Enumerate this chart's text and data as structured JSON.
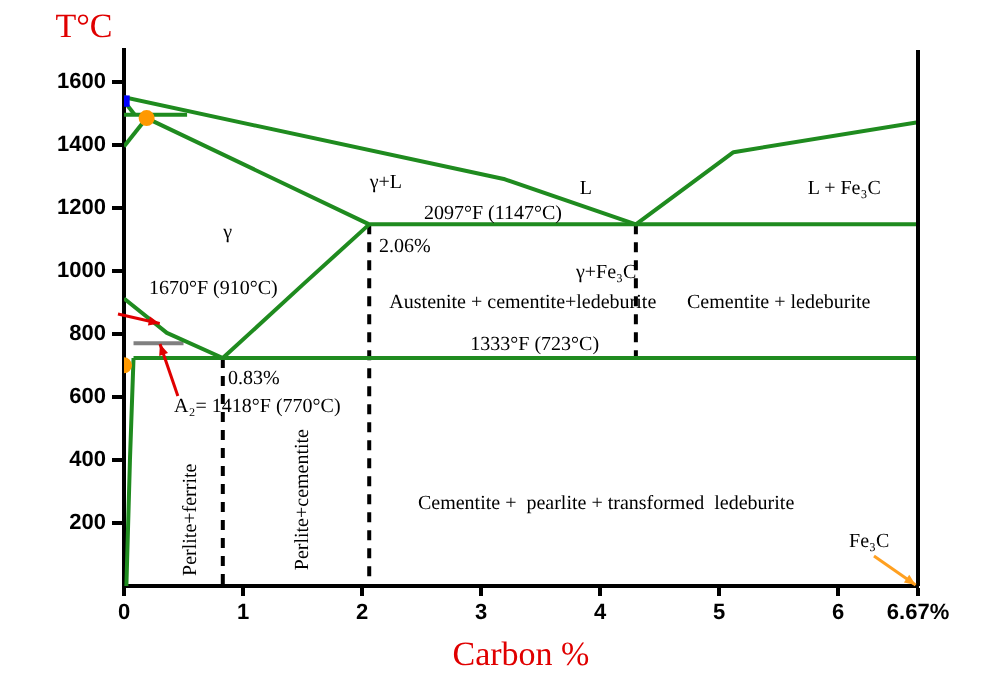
{
  "chart_data": {
    "type": "line",
    "xlabel": "Carbon %",
    "ylabel": "T°C",
    "xlim": [
      0,
      6.67
    ],
    "ylim": [
      0,
      1700
    ],
    "xticks": [
      0,
      1,
      2,
      3,
      4,
      5,
      6,
      {
        "value": 6.67,
        "label": "6.67%"
      }
    ],
    "yticks": [
      200,
      400,
      600,
      800,
      1000,
      1200,
      1400,
      1600
    ],
    "grid": false,
    "legend": false,
    "marker": "none",
    "line_style": "solid",
    "series": [
      {
        "color": "#1f8b1f",
        "x": [
          0,
          3.2,
          4.3,
          5.12,
          6.67
        ],
        "values": [
          1550,
          1290,
          1147,
          1376,
          1471
        ]
      },
      {
        "color": "#1f8b1f",
        "x": [
          0.19,
          2.06,
          6.67
        ],
        "values": [
          1484,
          1147,
          1147
        ]
      },
      {
        "color": "#1f8b1f",
        "x": [
          0,
          0.53
        ],
        "values": [
          1495,
          1495
        ]
      },
      {
        "color": "#1f8b1f",
        "x": [
          0,
          0.19
        ],
        "values": [
          1394,
          1484
        ]
      },
      {
        "color": "#1f8b1f",
        "x": [
          0,
          0.09
        ],
        "values": [
          1538,
          1495
        ]
      },
      {
        "color": "#1f8b1f",
        "x": [
          0,
          0.36,
          0.83
        ],
        "values": [
          912,
          803,
          723
        ]
      },
      {
        "color": "#1f8b1f",
        "x": [
          0.83,
          1.5,
          2.06
        ],
        "values": [
          723,
          955,
          1147
        ]
      },
      {
        "color": "#1f8b1f",
        "x": [
          0.08,
          6.67
        ],
        "values": [
          723,
          723
        ]
      },
      {
        "color": "#808080",
        "x": [
          0.08,
          0.5
        ],
        "values": [
          770,
          770
        ]
      },
      {
        "color": "#1f8b1f",
        "x": [
          0.08,
          0.05,
          0.02
        ],
        "values": [
          723,
          400,
          0
        ]
      },
      {
        "color": "#000000",
        "line_style": "dashed",
        "x": [
          0.83,
          0.83
        ],
        "values": [
          723,
          0
        ]
      },
      {
        "color": "#000000",
        "line_style": "dashed",
        "x": [
          2.06,
          2.06
        ],
        "values": [
          1147,
          0
        ]
      },
      {
        "color": "#000000",
        "line_style": "dashed",
        "x": [
          4.3,
          4.3
        ],
        "values": [
          1147,
          723
        ]
      },
      {
        "type": "scatter",
        "marker": "square",
        "color": "#0000ff",
        "x": [
          0
        ],
        "values": [
          1538
        ]
      },
      {
        "type": "scatter",
        "marker": "circle",
        "color": "#ff9900",
        "x": [
          0.19,
          0
        ],
        "values": [
          1484,
          700
        ]
      }
    ],
    "annotations": [
      "L",
      "γ+L",
      "L + Fe₃C",
      "γ",
      "2097°F (1147°C)",
      "2.06%",
      "1670°F (910°C)",
      "Austenite + cementite+ledeburite",
      "γ+Fe₃C",
      "Cementite + ledeburite",
      "1333°F (723°C)",
      "0.83%",
      "A₂= 1418°F (770°C)",
      "Perlite+ferrite",
      "Perlite+cementite",
      "Cementite +  pearlite + transformed  ledeburite",
      "Fe₃C"
    ]
  }
}
